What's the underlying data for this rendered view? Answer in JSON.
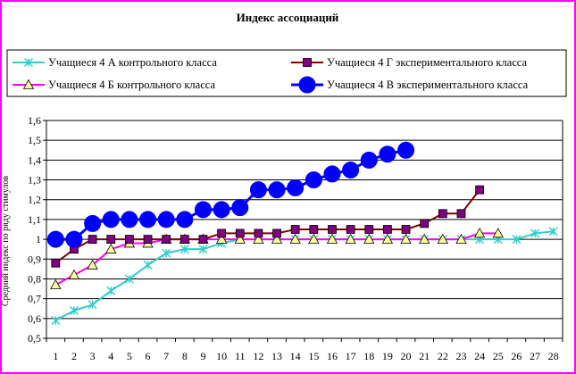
{
  "chart_data": {
    "type": "line",
    "title": "Индекс ассоциаций",
    "ylabel": "Средний индекс по ряду стимулов",
    "ylim": [
      0.5,
      1.6
    ],
    "ystep": 0.1,
    "yticks": [
      "0,5",
      "0,6",
      "0,7",
      "0,8",
      "0,9",
      "1",
      "1,1",
      "1,2",
      "1,3",
      "1,4",
      "1,5",
      "1,6"
    ],
    "xlim": [
      1,
      28
    ],
    "xticks": [
      "1",
      "2",
      "3",
      "4",
      "5",
      "6",
      "7",
      "8",
      "9",
      "10",
      "11",
      "12",
      "13",
      "14",
      "15",
      "16",
      "17",
      "18",
      "19",
      "20",
      "21",
      "22",
      "23",
      "24",
      "25",
      "26",
      "27",
      "28"
    ],
    "grid": "horizontal",
    "legend_position": "top",
    "series": [
      {
        "name": "Учащиеся 4 А контрольного класса",
        "marker": "asterisk",
        "color": "#33cccc",
        "x": [
          1,
          2,
          3,
          4,
          5,
          6,
          7,
          8,
          9,
          10,
          11,
          12,
          13,
          14,
          15,
          16,
          17,
          18,
          19,
          20,
          21,
          22,
          23,
          24,
          25,
          26,
          27,
          28
        ],
        "values": [
          0.59,
          0.64,
          0.67,
          0.74,
          0.8,
          0.87,
          0.93,
          0.95,
          0.95,
          0.98,
          1.0,
          1.0,
          1.0,
          1.0,
          1.0,
          1.0,
          1.0,
          1.0,
          1.0,
          1.0,
          1.0,
          1.0,
          1.0,
          1.0,
          1.0,
          1.0,
          1.03,
          1.04
        ]
      },
      {
        "name": "Учащиеся 4 Б контрольного класса",
        "marker": "triangle",
        "color": "#ff00ff",
        "marker_fill": "#ffff99",
        "x": [
          1,
          2,
          3,
          4,
          5,
          6,
          7,
          8,
          9,
          10,
          11,
          12,
          13,
          14,
          15,
          16,
          17,
          18,
          19,
          20,
          21,
          22,
          23,
          24,
          25
        ],
        "values": [
          0.77,
          0.82,
          0.87,
          0.95,
          0.98,
          0.98,
          1.0,
          1.0,
          1.0,
          1.0,
          1.0,
          1.0,
          1.0,
          1.0,
          1.0,
          1.0,
          1.0,
          1.0,
          1.0,
          1.0,
          1.0,
          1.0,
          1.0,
          1.03,
          1.03
        ]
      },
      {
        "name": "Учащиеся 4 Г экспериментального класса",
        "marker": "square",
        "color": "#800000",
        "marker_fill": "#800080",
        "x": [
          1,
          2,
          3,
          4,
          5,
          6,
          7,
          8,
          9,
          10,
          11,
          12,
          13,
          14,
          15,
          16,
          17,
          18,
          19,
          20,
          21,
          22,
          23,
          24
        ],
        "values": [
          0.88,
          0.95,
          1.0,
          1.0,
          1.0,
          1.0,
          1.0,
          1.0,
          1.0,
          1.03,
          1.03,
          1.03,
          1.03,
          1.05,
          1.05,
          1.05,
          1.05,
          1.05,
          1.05,
          1.05,
          1.08,
          1.13,
          1.13,
          1.25
        ]
      },
      {
        "name": "Учащиеся 4 В экспериментального класса",
        "marker": "circle",
        "color": "#0000ff",
        "x": [
          1,
          2,
          3,
          4,
          5,
          6,
          7,
          8,
          9,
          10,
          11,
          12,
          13,
          14,
          15,
          16,
          17,
          18,
          19,
          20
        ],
        "values": [
          1.0,
          1.0,
          1.08,
          1.1,
          1.1,
          1.1,
          1.1,
          1.1,
          1.15,
          1.15,
          1.16,
          1.25,
          1.25,
          1.26,
          1.3,
          1.33,
          1.35,
          1.4,
          1.43,
          1.45
        ]
      }
    ]
  }
}
